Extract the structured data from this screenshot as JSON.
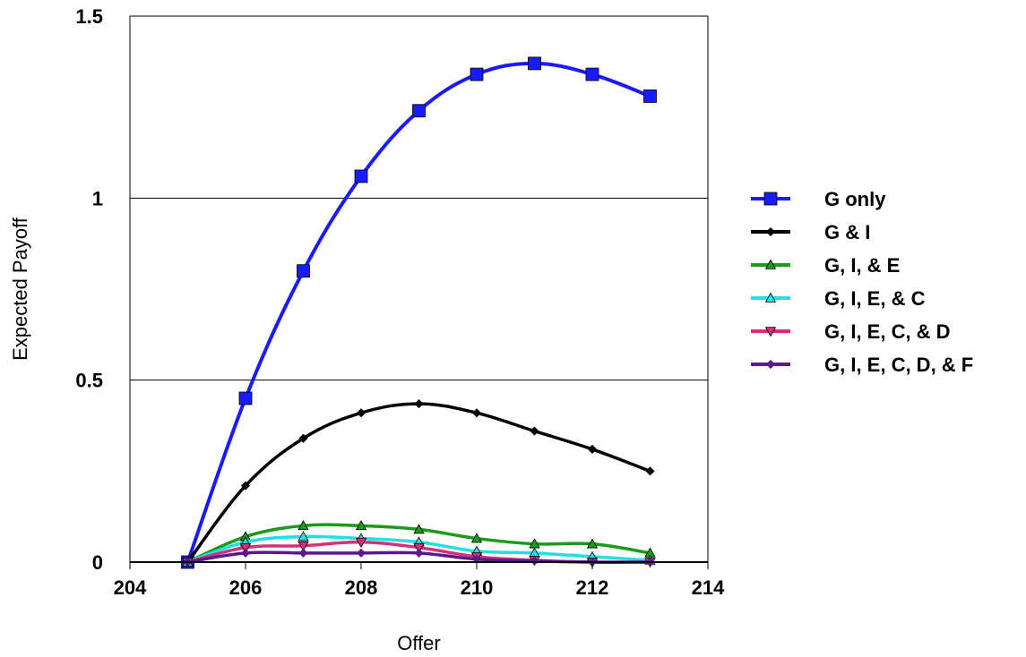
{
  "chart_data": {
    "type": "line",
    "title": "",
    "xlabel": "Offer",
    "ylabel": "Expected Payoff",
    "xlim": [
      204,
      214
    ],
    "ylim": [
      0,
      1.5
    ],
    "x_ticks": [
      "204",
      "206",
      "208",
      "210",
      "212",
      "214"
    ],
    "y_ticks": [
      "0",
      "0.5",
      "1",
      "1.5"
    ],
    "grid": "horizontal",
    "legend": "right",
    "x": [
      205,
      206,
      207,
      208,
      209,
      210,
      211,
      212,
      213
    ],
    "series": [
      {
        "name": "G only",
        "color": "#1a1aff",
        "marker": "square",
        "values": [
          0,
          0.45,
          0.8,
          1.06,
          1.24,
          1.34,
          1.37,
          1.34,
          1.28
        ]
      },
      {
        "name": "G & I",
        "color": "#000000",
        "marker": "diamond",
        "values": [
          0,
          0.21,
          0.34,
          0.41,
          0.435,
          0.41,
          0.36,
          0.31,
          0.25
        ]
      },
      {
        "name": "G, I, & E",
        "color": "#1a9c1a",
        "marker": "triangle-up",
        "values": [
          0,
          0.07,
          0.1,
          0.1,
          0.09,
          0.065,
          0.05,
          0.05,
          0.025
        ]
      },
      {
        "name": "G, I, E, & C",
        "color": "#22e0e0",
        "marker": "triangle-up",
        "values": [
          0,
          0.055,
          0.07,
          0.065,
          0.055,
          0.03,
          0.025,
          0.015,
          0.005
        ]
      },
      {
        "name": "G, I, E, C, & D",
        "color": "#d6307a",
        "marker": "triangle-down",
        "values": [
          0,
          0.04,
          0.045,
          0.055,
          0.04,
          0.015,
          0.005,
          0.0,
          0.0
        ]
      },
      {
        "name": "G, I, E, C, D, & F",
        "color": "#5a1a8c",
        "marker": "diamond",
        "values": [
          0,
          0.025,
          0.025,
          0.025,
          0.025,
          0.008,
          0.003,
          0.0,
          0.0
        ]
      }
    ]
  }
}
